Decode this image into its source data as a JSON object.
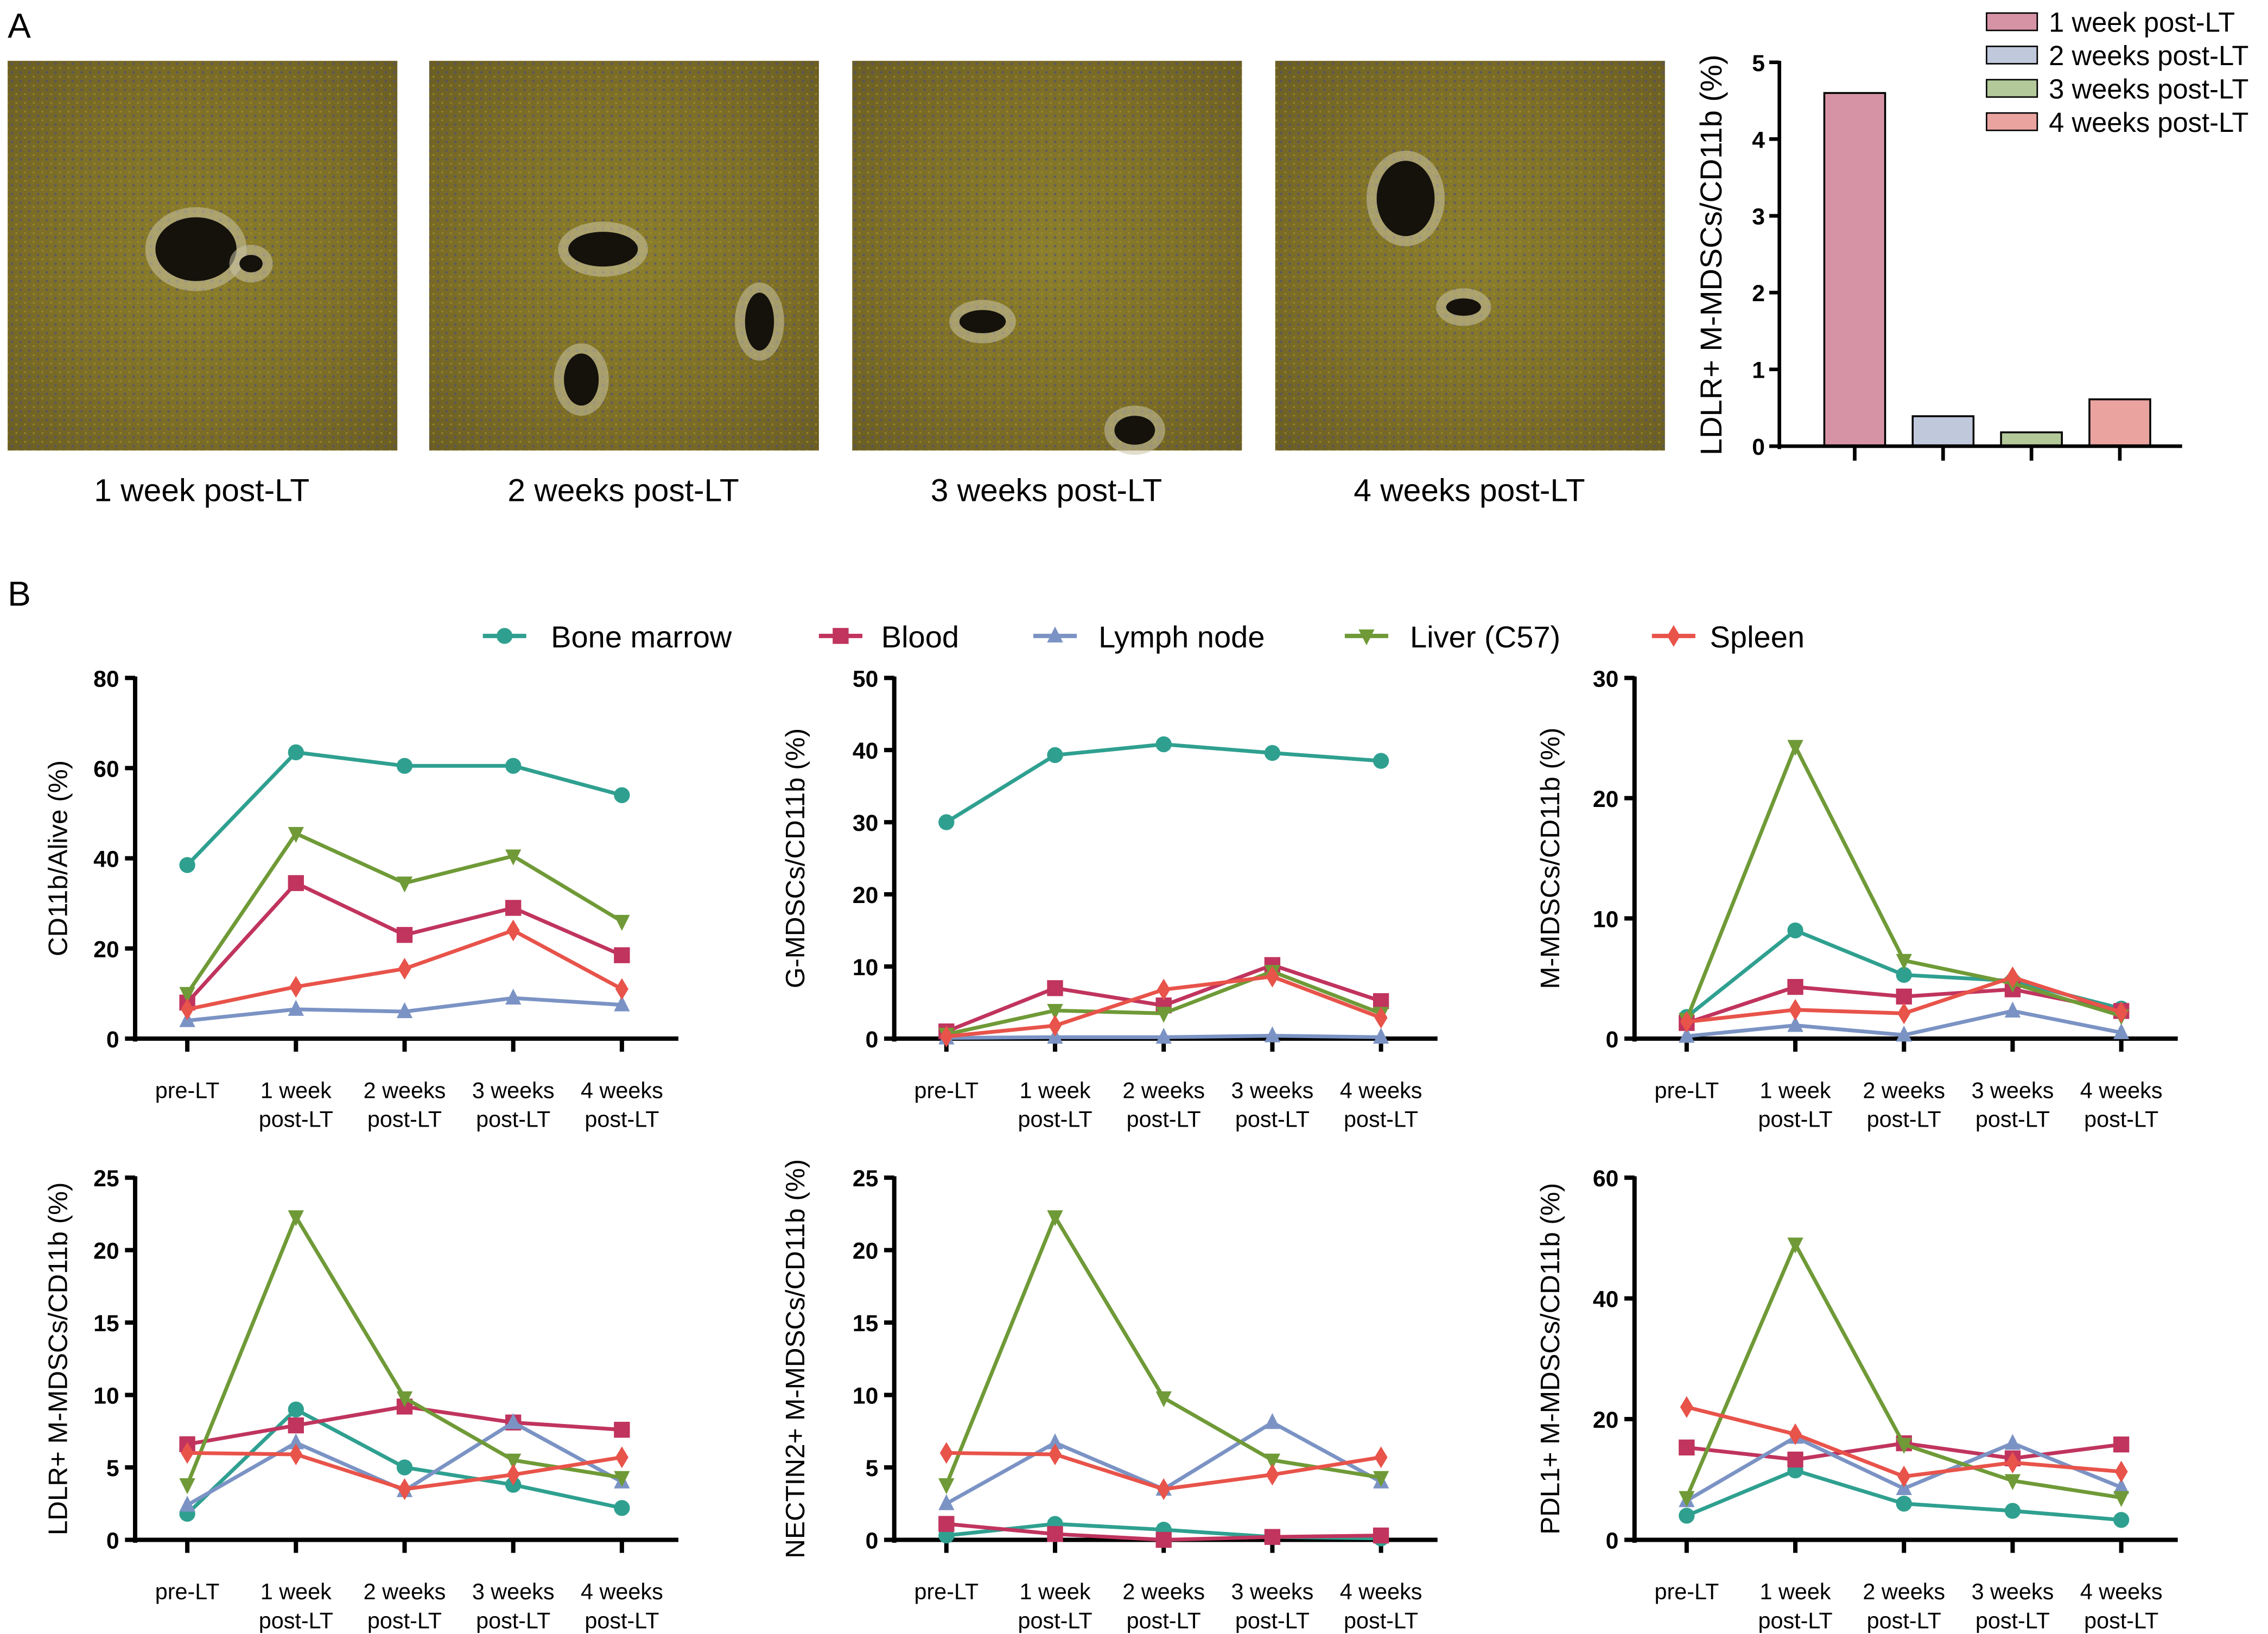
{
  "panel_labels": {
    "a": "A",
    "b": "B"
  },
  "micrographs": [
    {
      "caption": "1 week post-LT"
    },
    {
      "caption": "2 weeks post-LT"
    },
    {
      "caption": "3 weeks post-LT"
    },
    {
      "caption": "4 weeks post-LT"
    }
  ],
  "legend_b": [
    {
      "name": "Bone marrow",
      "color": "#2fa090",
      "marker": "circle"
    },
    {
      "name": "Blood",
      "color": "#c0345e",
      "marker": "square"
    },
    {
      "name": "Lymph node",
      "color": "#7b93c4",
      "marker": "triangle-up"
    },
    {
      "name": "Liver (C57)",
      "color": "#6f9a37",
      "marker": "triangle-down"
    },
    {
      "name": "Spleen",
      "color": "#e8534a",
      "marker": "diamond"
    }
  ],
  "chart_data": [
    {
      "type": "bar",
      "ylabel": "LDLR+ M-MDSCs/CD11b (%)",
      "ylim": [
        0,
        5
      ],
      "yticks": [
        0,
        1,
        2,
        3,
        4,
        5
      ],
      "categories": [
        "1 week post-LT",
        "2 weeks post-LT",
        "3 weeks post-LT",
        "4 weeks post-LT"
      ],
      "values": [
        4.6,
        0.39,
        0.18,
        0.61
      ],
      "colors": [
        "#d693a5",
        "#c0c8dc",
        "#b3c99a",
        "#eaa39f"
      ],
      "legend": "top-right",
      "grid": false
    },
    {
      "type": "line",
      "ylabel": "CD11b/Alive (%)",
      "ylim": [
        0,
        80
      ],
      "yticks": [
        0,
        20,
        40,
        60,
        80
      ],
      "categories": [
        [
          "pre-LT"
        ],
        [
          "1 week",
          "post-LT"
        ],
        [
          "2 weeks",
          "post-LT"
        ],
        [
          "3 weeks",
          "post-LT"
        ],
        [
          "4 weeks",
          "post-LT"
        ]
      ],
      "series": [
        {
          "name": "Bone marrow",
          "values": [
            38.5,
            63.5,
            60.5,
            60.5,
            54
          ]
        },
        {
          "name": "Blood",
          "values": [
            8,
            34.5,
            23,
            29,
            18.5
          ]
        },
        {
          "name": "Lymph node",
          "values": [
            4,
            6.5,
            6,
            9,
            7.5
          ]
        },
        {
          "name": "Liver (C57)",
          "values": [
            10,
            45.5,
            34.5,
            40.5,
            26
          ]
        },
        {
          "name": "Spleen",
          "values": [
            6.5,
            11.5,
            15.5,
            24,
            11
          ]
        }
      ],
      "grid": false
    },
    {
      "type": "line",
      "ylabel": "G-MDSCs/CD11b (%)",
      "ylim": [
        0,
        50
      ],
      "yticks": [
        0,
        10,
        20,
        30,
        40,
        50
      ],
      "categories": [
        [
          "pre-LT"
        ],
        [
          "1 week",
          "post-LT"
        ],
        [
          "2 weeks",
          "post-LT"
        ],
        [
          "3 weeks",
          "post-LT"
        ],
        [
          "4 weeks",
          "post-LT"
        ]
      ],
      "series": [
        {
          "name": "Bone marrow",
          "values": [
            30,
            39.3,
            40.8,
            39.6,
            38.5
          ]
        },
        {
          "name": "Blood",
          "values": [
            1,
            7,
            4.6,
            10.2,
            5.2
          ]
        },
        {
          "name": "Lymph node",
          "values": [
            0.1,
            0.2,
            0.2,
            0.4,
            0.2
          ]
        },
        {
          "name": "Liver (C57)",
          "values": [
            0.6,
            3.9,
            3.5,
            9.3,
            3.5
          ]
        },
        {
          "name": "Spleen",
          "values": [
            0.3,
            1.8,
            6.8,
            8.6,
            2.9
          ]
        }
      ],
      "grid": false
    },
    {
      "type": "line",
      "ylabel": "M-MDSCs/CD11b (%)",
      "ylim": [
        0,
        30
      ],
      "yticks": [
        0,
        10,
        20,
        30
      ],
      "categories": [
        [
          "pre-LT"
        ],
        [
          "1 week",
          "post-LT"
        ],
        [
          "2 weeks",
          "post-LT"
        ],
        [
          "3 weeks",
          "post-LT"
        ],
        [
          "4 weeks",
          "post-LT"
        ]
      ],
      "series": [
        {
          "name": "Bone marrow",
          "values": [
            1.8,
            9,
            5.3,
            4.8,
            2.5
          ]
        },
        {
          "name": "Blood",
          "values": [
            1.3,
            4.3,
            3.5,
            4.1,
            2.3
          ]
        },
        {
          "name": "Lymph node",
          "values": [
            0.2,
            1.1,
            0.3,
            2.3,
            0.5
          ]
        },
        {
          "name": "Liver (C57)",
          "values": [
            1.6,
            24.3,
            6.5,
            4.6,
            1.9
          ]
        },
        {
          "name": "Spleen",
          "values": [
            1.4,
            2.4,
            2.1,
            5.1,
            2.2
          ]
        }
      ],
      "grid": false
    },
    {
      "type": "line",
      "ylabel": "LDLR+ M-MDSCs/CD11b (%)",
      "ylim": [
        0,
        25
      ],
      "yticks": [
        0,
        5,
        10,
        15,
        20,
        25
      ],
      "categories": [
        [
          "pre-LT"
        ],
        [
          "1 week",
          "post-LT"
        ],
        [
          "2 weeks",
          "post-LT"
        ],
        [
          "3 weeks",
          "post-LT"
        ],
        [
          "4 weeks",
          "post-LT"
        ]
      ],
      "series": [
        {
          "name": "Bone marrow",
          "values": [
            1.8,
            9,
            5,
            3.8,
            2.2
          ]
        },
        {
          "name": "Blood",
          "values": [
            6.6,
            7.9,
            9.2,
            8.1,
            7.6
          ]
        },
        {
          "name": "Lymph node",
          "values": [
            2.4,
            6.7,
            3.4,
            8.1,
            4
          ]
        },
        {
          "name": "Liver (C57)",
          "values": [
            3.8,
            22.3,
            9.8,
            5.5,
            4.3
          ]
        },
        {
          "name": "Spleen",
          "values": [
            6,
            5.9,
            3.5,
            4.5,
            5.7
          ]
        }
      ],
      "grid": false
    },
    {
      "type": "line",
      "ylabel": "NECTIN2+ M-MDSCs/CD11b (%)",
      "ylim": [
        0,
        25
      ],
      "yticks": [
        0,
        5,
        10,
        15,
        20,
        25
      ],
      "categories": [
        [
          "pre-LT"
        ],
        [
          "1 week",
          "post-LT"
        ],
        [
          "2 weeks",
          "post-LT"
        ],
        [
          "3 weeks",
          "post-LT"
        ],
        [
          "4 weeks",
          "post-LT"
        ]
      ],
      "series": [
        {
          "name": "Bone marrow",
          "values": [
            0.3,
            1.1,
            0.7,
            0.2,
            0.1
          ]
        },
        {
          "name": "Blood",
          "values": [
            1.1,
            0.4,
            0,
            0.2,
            0.3
          ]
        },
        {
          "name": "Lymph node",
          "values": [
            2.5,
            6.7,
            3.5,
            8.1,
            4
          ]
        },
        {
          "name": "Liver (C57)",
          "values": [
            3.8,
            22.3,
            9.8,
            5.5,
            4.3
          ]
        },
        {
          "name": "Spleen",
          "values": [
            6,
            5.9,
            3.5,
            4.5,
            5.7
          ]
        }
      ],
      "grid": false
    },
    {
      "type": "line",
      "ylabel": "PDL1+ M-MDSCs/CD11b (%)",
      "ylim": [
        0,
        60
      ],
      "yticks": [
        0,
        20,
        40,
        60
      ],
      "categories": [
        [
          "pre-LT"
        ],
        [
          "1 week",
          "post-LT"
        ],
        [
          "2 weeks",
          "post-LT"
        ],
        [
          "3 weeks",
          "post-LT"
        ],
        [
          "4 weeks",
          "post-LT"
        ]
      ],
      "series": [
        {
          "name": "Bone marrow",
          "values": [
            4,
            11.5,
            6,
            4.8,
            3.3
          ]
        },
        {
          "name": "Blood",
          "values": [
            15.3,
            13.3,
            16,
            13.5,
            15.8
          ]
        },
        {
          "name": "Lymph node",
          "values": [
            6.5,
            17,
            8.5,
            16,
            8.7
          ]
        },
        {
          "name": "Liver (C57)",
          "values": [
            7,
            49,
            15.8,
            9.8,
            7
          ]
        },
        {
          "name": "Spleen",
          "values": [
            22,
            17.5,
            10.5,
            12.8,
            11.3
          ]
        }
      ],
      "grid": false
    }
  ]
}
